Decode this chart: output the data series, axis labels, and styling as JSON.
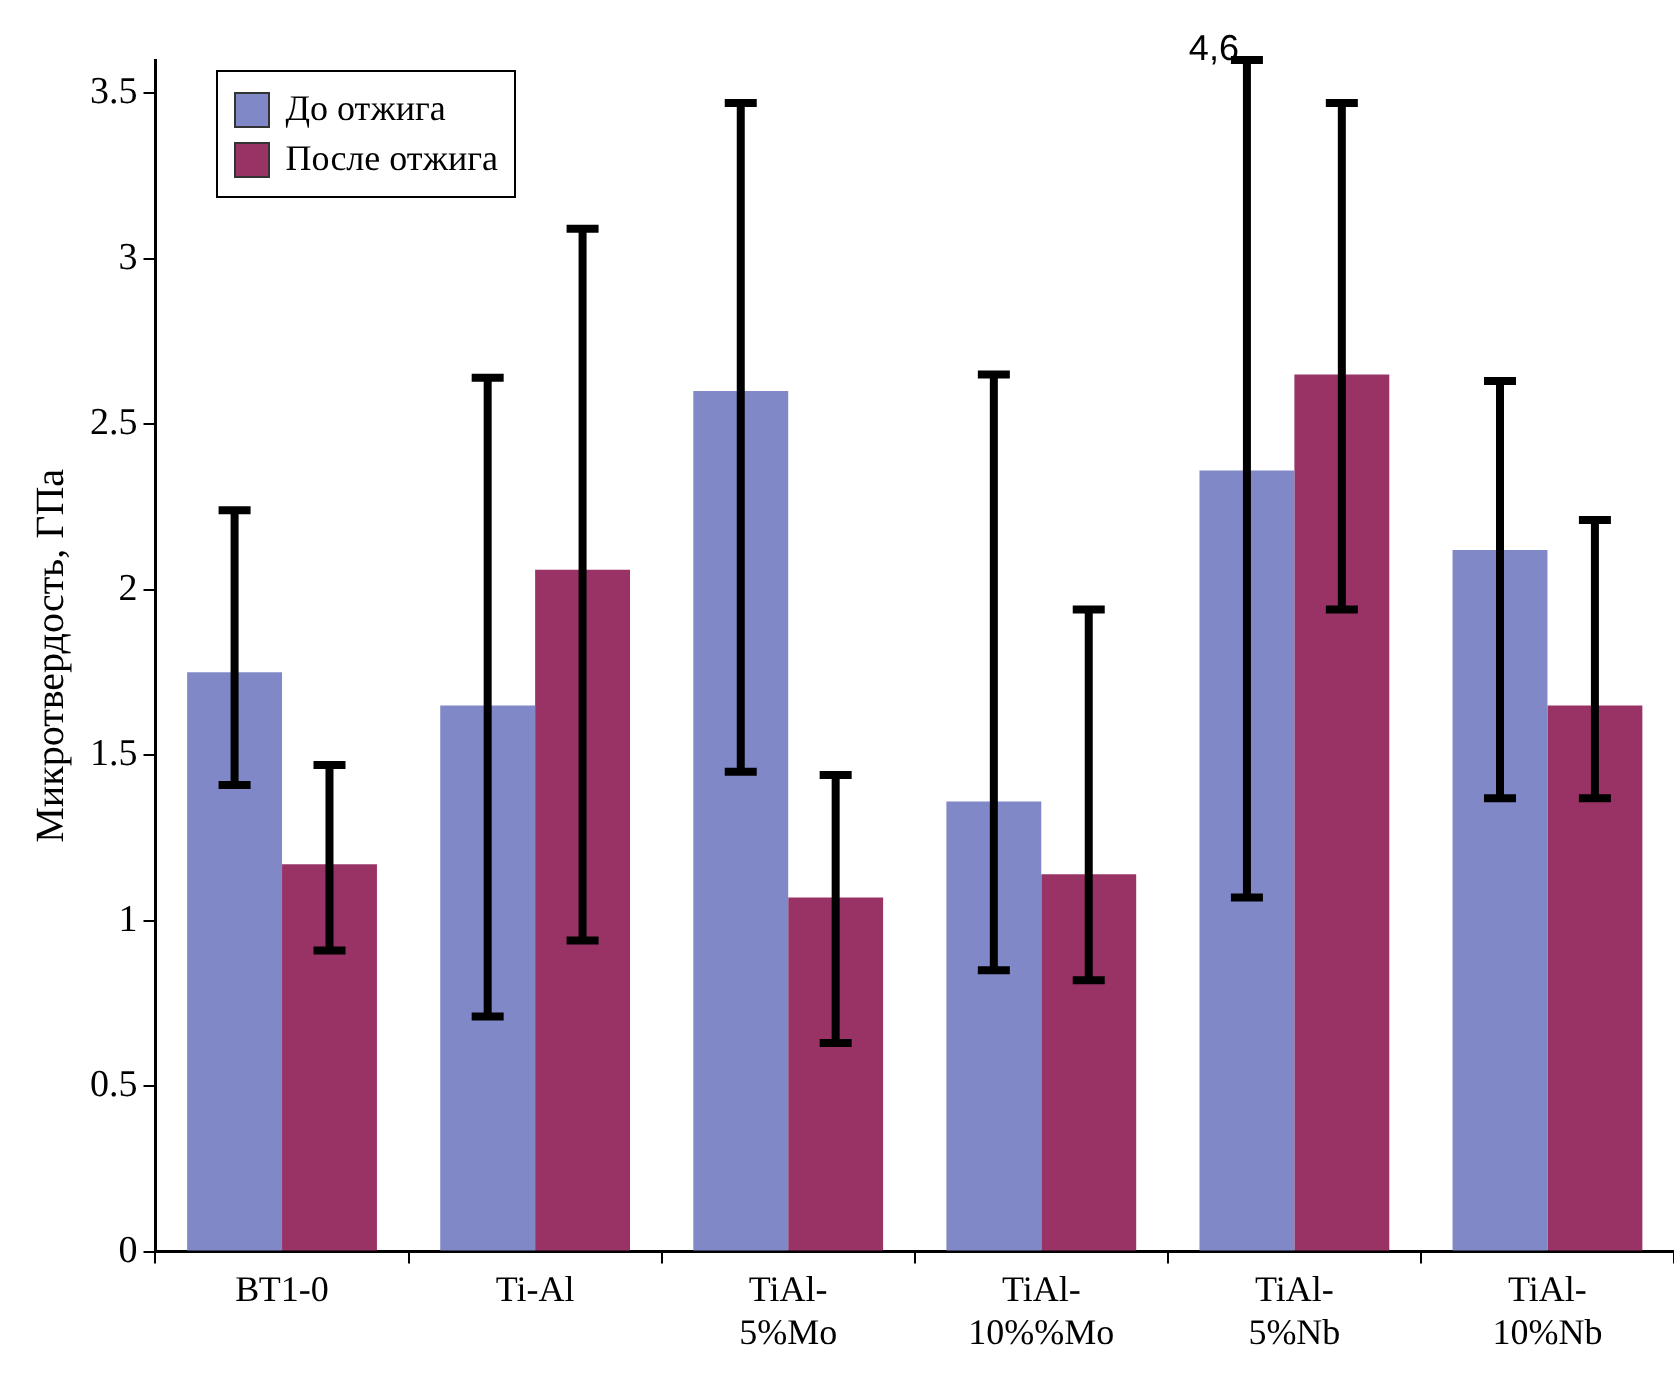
{
  "chart_data": {
    "type": "bar",
    "ylabel": "Микротвердость, ГПа",
    "categories": [
      "ВТ1-0",
      "Ti-Al",
      "TiAl-\n5%Mo",
      "TiAl-\n10%%Mo",
      "TiAl-\n5%Nb",
      "TiAl-\n10%Nb"
    ],
    "series": [
      {
        "name": "До отжига",
        "color": "#8088c8",
        "values": [
          1.75,
          1.65,
          2.6,
          1.36,
          2.36,
          2.12
        ],
        "errors": [
          [
            1.41,
            2.24
          ],
          [
            0.71,
            2.64
          ],
          [
            1.45,
            3.47
          ],
          [
            0.85,
            2.65
          ],
          [
            1.07,
            3.6
          ],
          [
            1.37,
            2.63
          ]
        ]
      },
      {
        "name": "После отжига",
        "color": "#993366",
        "values": [
          1.17,
          2.06,
          1.07,
          1.14,
          2.65,
          1.65
        ],
        "errors": [
          [
            0.91,
            1.47
          ],
          [
            0.94,
            3.09
          ],
          [
            0.63,
            1.44
          ],
          [
            0.82,
            1.94
          ],
          [
            1.94,
            3.47
          ],
          [
            1.37,
            2.21
          ]
        ]
      }
    ],
    "ylim": [
      0,
      3.6
    ],
    "yticks": [
      0,
      0.5,
      1,
      1.5,
      2,
      2.5,
      3,
      3.5
    ],
    "annotations": [
      "4,6"
    ],
    "grid": false,
    "legend": "top left"
  }
}
